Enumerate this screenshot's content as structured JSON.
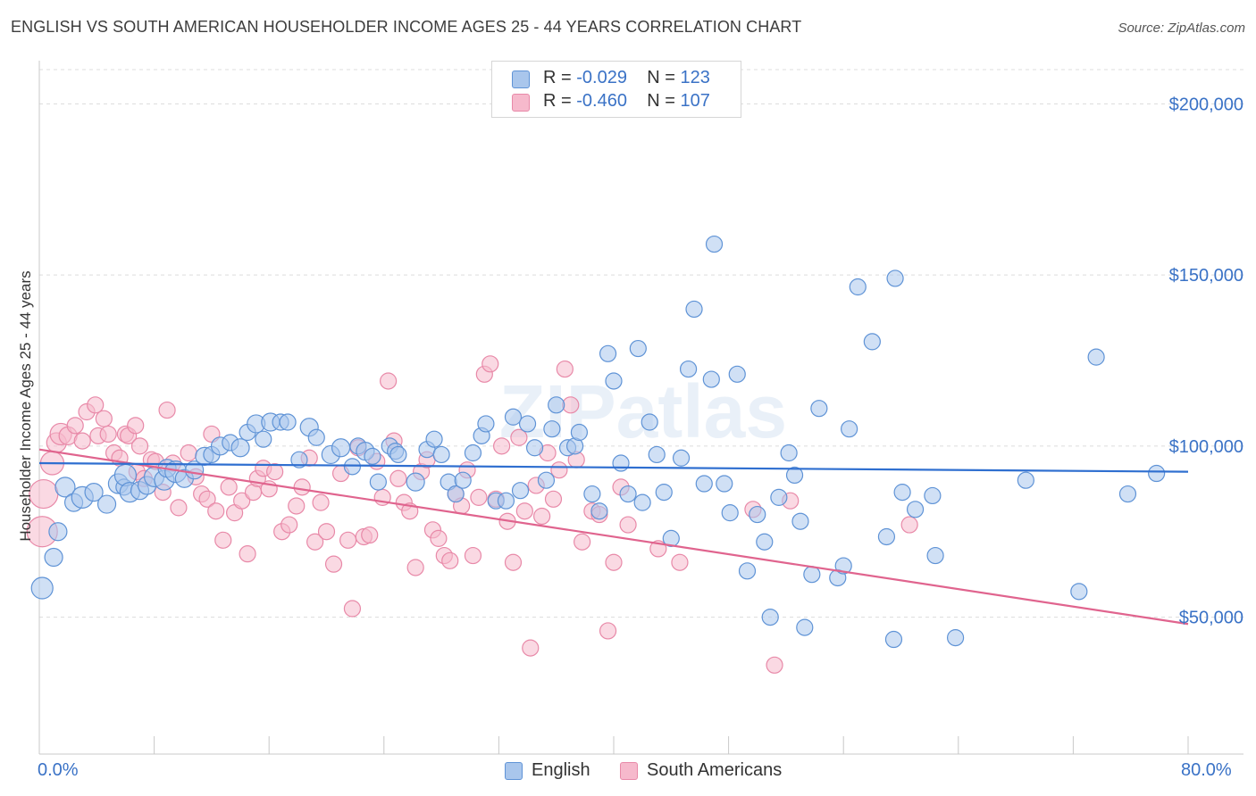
{
  "header": {
    "title": "ENGLISH VS SOUTH AMERICAN HOUSEHOLDER INCOME AGES 25 - 44 YEARS CORRELATION CHART",
    "source": "Source: ZipAtlas.com"
  },
  "legend": {
    "rows": [
      {
        "r_label": "R =",
        "r_value": "-0.029",
        "n_label": "N =",
        "n_value": "123"
      },
      {
        "r_label": "R =",
        "r_value": "-0.460",
        "n_label": "N =",
        "n_value": "107"
      }
    ],
    "bottom": [
      "English",
      "South Americans"
    ]
  },
  "watermark": "ZIPatlas",
  "colors": {
    "english_fill": "#a9c6ec",
    "english_stroke": "#5f93d6",
    "english_line": "#2f6fd0",
    "south_fill": "#f6b9cc",
    "south_stroke": "#e889a8",
    "south_line": "#e0648e",
    "axis_text": "#3a72c6",
    "grid": "#dcdcdc"
  },
  "chart_data": {
    "type": "scatter",
    "title": "ENGLISH VS SOUTH AMERICAN HOUSEHOLDER INCOME AGES 25 - 44 YEARS CORRELATION CHART",
    "xlabel": "",
    "ylabel": "Householder Income Ages 25 - 44 years",
    "x_unit": "%",
    "xlim": [
      0,
      80
    ],
    "ylim": [
      10000,
      210000
    ],
    "x_tick_labels": [
      "0.0%",
      "80.0%"
    ],
    "y_ticks": [
      50000,
      100000,
      150000,
      200000
    ],
    "y_tick_labels": [
      "$50,000",
      "$100,000",
      "$150,000",
      "$200,000"
    ],
    "grid": true,
    "legend_position": "top-center",
    "series": [
      {
        "name": "English",
        "R": -0.029,
        "N": 123,
        "trend": {
          "x": [
            0,
            80
          ],
          "y": [
            95000,
            92500
          ]
        },
        "points": [
          [
            0.2,
            58500,
            12
          ],
          [
            1,
            67500,
            10
          ],
          [
            1.3,
            75000,
            10
          ],
          [
            1.8,
            88000,
            11
          ],
          [
            2.4,
            83500,
            10
          ],
          [
            3,
            85000,
            12
          ],
          [
            3.8,
            86500,
            10
          ],
          [
            4.7,
            83000,
            10
          ],
          [
            5.5,
            89000,
            11
          ],
          [
            5.9,
            88000,
            9
          ],
          [
            6,
            91500,
            12
          ],
          [
            6.3,
            86500,
            11
          ],
          [
            7,
            87000,
            10
          ],
          [
            7.5,
            88500,
            10
          ],
          [
            8,
            91000,
            11
          ],
          [
            8.7,
            90000,
            11
          ],
          [
            8.9,
            93500,
            10
          ],
          [
            9.5,
            92500,
            12
          ],
          [
            10.1,
            90500,
            10
          ],
          [
            10.8,
            93000,
            10
          ],
          [
            11.5,
            97000,
            10
          ],
          [
            12,
            97500,
            9
          ],
          [
            12.6,
            100000,
            10
          ],
          [
            13.3,
            101000,
            9
          ],
          [
            14,
            99500,
            10
          ],
          [
            14.5,
            104000,
            9
          ],
          [
            15.1,
            106500,
            10
          ],
          [
            15.6,
            102000,
            9
          ],
          [
            16.1,
            107000,
            10
          ],
          [
            16.8,
            107000,
            9
          ],
          [
            17.3,
            107000,
            9
          ],
          [
            18.1,
            96000,
            9
          ],
          [
            18.8,
            105500,
            10
          ],
          [
            19.3,
            102500,
            9
          ],
          [
            20.3,
            97500,
            10
          ],
          [
            21,
            99500,
            10
          ],
          [
            21.8,
            94000,
            9
          ],
          [
            22.2,
            100000,
            9
          ],
          [
            22.7,
            98500,
            10
          ],
          [
            23.2,
            97000,
            9
          ],
          [
            23.6,
            89500,
            9
          ],
          [
            24.4,
            100000,
            9
          ],
          [
            24.8,
            98500,
            9
          ],
          [
            25,
            97500,
            9
          ],
          [
            26.2,
            89500,
            10
          ],
          [
            27,
            99000,
            9
          ],
          [
            27.5,
            102000,
            9
          ],
          [
            28,
            97500,
            9
          ],
          [
            28.5,
            89500,
            9
          ],
          [
            29,
            86000,
            9
          ],
          [
            29.5,
            90000,
            9
          ],
          [
            30.2,
            98000,
            9
          ],
          [
            30.8,
            103000,
            9
          ],
          [
            31.1,
            106500,
            9
          ],
          [
            31.8,
            84000,
            9
          ],
          [
            32.5,
            84000,
            9
          ],
          [
            33,
            108500,
            9
          ],
          [
            33.5,
            87000,
            9
          ],
          [
            34,
            106500,
            9
          ],
          [
            34.5,
            99500,
            9
          ],
          [
            35.3,
            90000,
            9
          ],
          [
            35.7,
            105000,
            9
          ],
          [
            36,
            112000,
            9
          ],
          [
            36.8,
            99500,
            9
          ],
          [
            37.3,
            100000,
            9
          ],
          [
            37.6,
            104000,
            9
          ],
          [
            38.5,
            86000,
            9
          ],
          [
            39,
            81000,
            9
          ],
          [
            39.6,
            127000,
            9
          ],
          [
            40,
            119000,
            9
          ],
          [
            40.5,
            95000,
            9
          ],
          [
            41,
            86000,
            9
          ],
          [
            41.7,
            128500,
            9
          ],
          [
            42,
            83500,
            9
          ],
          [
            42.5,
            107000,
            9
          ],
          [
            43,
            97500,
            9
          ],
          [
            43.5,
            86500,
            9
          ],
          [
            44,
            73000,
            9
          ],
          [
            44.7,
            96500,
            9
          ],
          [
            45.2,
            122500,
            9
          ],
          [
            45.6,
            140000,
            9
          ],
          [
            46.3,
            89000,
            9
          ],
          [
            46.8,
            119500,
            9
          ],
          [
            47,
            159000,
            9
          ],
          [
            47.7,
            89000,
            9
          ],
          [
            48.1,
            80500,
            9
          ],
          [
            48.6,
            121000,
            9
          ],
          [
            49.3,
            63500,
            9
          ],
          [
            50,
            80000,
            9
          ],
          [
            50.5,
            72000,
            9
          ],
          [
            50.9,
            50000,
            9
          ],
          [
            51.5,
            85000,
            9
          ],
          [
            52.2,
            98000,
            9
          ],
          [
            52.6,
            91500,
            9
          ],
          [
            53,
            78000,
            9
          ],
          [
            53.3,
            47000,
            9
          ],
          [
            53.8,
            62500,
            9
          ],
          [
            54.3,
            111000,
            9
          ],
          [
            55.6,
            61500,
            9
          ],
          [
            56,
            65000,
            9
          ],
          [
            56.4,
            105000,
            9
          ],
          [
            57,
            146500,
            9
          ],
          [
            58,
            130500,
            9
          ],
          [
            59,
            73500,
            9
          ],
          [
            59.5,
            43500,
            9
          ],
          [
            59.6,
            149000,
            9
          ],
          [
            60.1,
            86500,
            9
          ],
          [
            61,
            81500,
            9
          ],
          [
            62.2,
            85500,
            9
          ],
          [
            62.4,
            68000,
            9
          ],
          [
            63.8,
            44000,
            9
          ],
          [
            68.7,
            90000,
            9
          ],
          [
            72.4,
            57500,
            9
          ],
          [
            73.6,
            126000,
            9
          ],
          [
            75.8,
            86000,
            9
          ],
          [
            77.8,
            92000,
            9
          ]
        ]
      },
      {
        "name": "South Americans",
        "R": -0.46,
        "N": 107,
        "trend": {
          "x": [
            0,
            80
          ],
          "y": [
            99000,
            48000
          ]
        },
        "points": [
          [
            0.2,
            75000,
            17
          ],
          [
            0.3,
            86000,
            16
          ],
          [
            0.9,
            95000,
            13
          ],
          [
            1.2,
            101000,
            11
          ],
          [
            1.5,
            103500,
            12
          ],
          [
            2,
            103000,
            10
          ],
          [
            2.5,
            106000,
            9
          ],
          [
            3,
            101500,
            9
          ],
          [
            3.3,
            110000,
            9
          ],
          [
            3.9,
            112000,
            9
          ],
          [
            4.1,
            103000,
            9
          ],
          [
            4.5,
            108000,
            9
          ],
          [
            4.8,
            103500,
            9
          ],
          [
            5.2,
            98000,
            9
          ],
          [
            5.6,
            96500,
            9
          ],
          [
            6,
            103500,
            9
          ],
          [
            6.2,
            103000,
            9
          ],
          [
            6.7,
            106000,
            9
          ],
          [
            6.8,
            92500,
            9
          ],
          [
            7,
            100000,
            9
          ],
          [
            7.3,
            90500,
            9
          ],
          [
            7.8,
            96000,
            9
          ],
          [
            8.1,
            95500,
            9
          ],
          [
            8.6,
            86500,
            9
          ],
          [
            8.9,
            110500,
            9
          ],
          [
            9.3,
            95000,
            9
          ],
          [
            9.7,
            82000,
            9
          ],
          [
            10.4,
            98000,
            9
          ],
          [
            10.9,
            91000,
            9
          ],
          [
            11.3,
            86000,
            9
          ],
          [
            11.7,
            84500,
            9
          ],
          [
            12,
            103500,
            9
          ],
          [
            12.3,
            81000,
            9
          ],
          [
            12.8,
            72500,
            9
          ],
          [
            13.2,
            88000,
            9
          ],
          [
            13.6,
            80500,
            9
          ],
          [
            14.1,
            84000,
            9
          ],
          [
            14.5,
            68500,
            9
          ],
          [
            14.9,
            86500,
            9
          ],
          [
            15.2,
            90500,
            9
          ],
          [
            15.6,
            93500,
            9
          ],
          [
            16,
            87500,
            9
          ],
          [
            16.4,
            92500,
            9
          ],
          [
            16.9,
            75000,
            9
          ],
          [
            17.4,
            77000,
            9
          ],
          [
            17.9,
            82500,
            9
          ],
          [
            18.3,
            88000,
            9
          ],
          [
            18.8,
            96500,
            9
          ],
          [
            19.2,
            72000,
            9
          ],
          [
            19.6,
            83500,
            9
          ],
          [
            20,
            75000,
            9
          ],
          [
            20.5,
            65500,
            9
          ],
          [
            21,
            92000,
            9
          ],
          [
            21.5,
            72500,
            9
          ],
          [
            21.8,
            52500,
            9
          ],
          [
            22.2,
            99500,
            9
          ],
          [
            22.6,
            73500,
            9
          ],
          [
            23,
            74000,
            9
          ],
          [
            23.5,
            95500,
            9
          ],
          [
            23.9,
            85000,
            9
          ],
          [
            24.3,
            119000,
            9
          ],
          [
            24.7,
            101500,
            9
          ],
          [
            25,
            90500,
            9
          ],
          [
            25.4,
            83500,
            9
          ],
          [
            25.8,
            81000,
            9
          ],
          [
            26.2,
            64500,
            9
          ],
          [
            26.6,
            92500,
            9
          ],
          [
            27,
            96000,
            9
          ],
          [
            27.4,
            75500,
            9
          ],
          [
            27.8,
            73000,
            9
          ],
          [
            28.2,
            68000,
            9
          ],
          [
            28.6,
            66500,
            9
          ],
          [
            29,
            86000,
            9
          ],
          [
            29.4,
            82500,
            9
          ],
          [
            29.8,
            93000,
            9
          ],
          [
            30.2,
            68000,
            9
          ],
          [
            30.6,
            85000,
            9
          ],
          [
            31,
            121000,
            9
          ],
          [
            31.4,
            124000,
            9
          ],
          [
            31.8,
            84500,
            9
          ],
          [
            32.2,
            100000,
            9
          ],
          [
            32.6,
            78000,
            9
          ],
          [
            33,
            66000,
            9
          ],
          [
            33.4,
            102500,
            9
          ],
          [
            33.8,
            81000,
            9
          ],
          [
            34.2,
            41000,
            9
          ],
          [
            34.6,
            88500,
            9
          ],
          [
            35,
            79500,
            9
          ],
          [
            35.4,
            98000,
            9
          ],
          [
            35.8,
            84500,
            9
          ],
          [
            36.2,
            93000,
            9
          ],
          [
            36.6,
            122500,
            9
          ],
          [
            37,
            112000,
            9
          ],
          [
            37.4,
            96000,
            9
          ],
          [
            37.8,
            72000,
            9
          ],
          [
            38.5,
            81000,
            9
          ],
          [
            39,
            80000,
            9
          ],
          [
            39.6,
            46000,
            9
          ],
          [
            40,
            66000,
            9
          ],
          [
            40.5,
            88000,
            9
          ],
          [
            41,
            77000,
            9
          ],
          [
            43.1,
            70000,
            9
          ],
          [
            44.6,
            66000,
            9
          ],
          [
            49.7,
            81500,
            9
          ],
          [
            51.2,
            36000,
            9
          ],
          [
            52.3,
            84000,
            9
          ],
          [
            60.6,
            77000,
            9
          ]
        ]
      }
    ]
  }
}
